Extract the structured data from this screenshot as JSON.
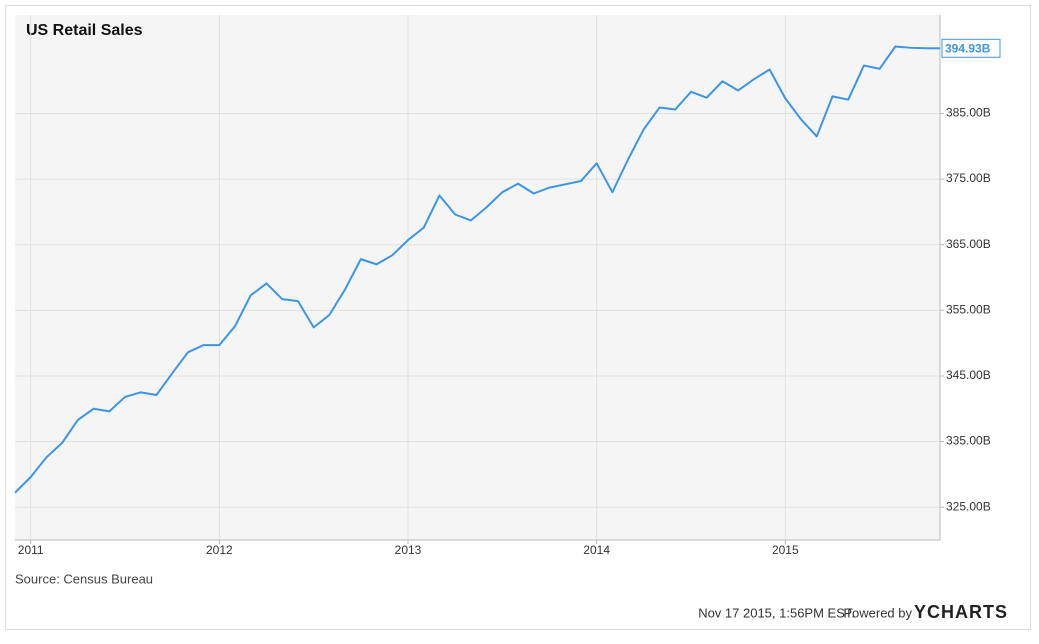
{
  "chart_data": {
    "type": "line",
    "title": "US Retail Sales",
    "source": "Source: Census Bureau",
    "timestamp": "Nov 17 2015, 1:56PM EST.",
    "powered_by": "Powered by",
    "brand": "YCHARTS",
    "xlim": [
      2010.9167,
      2015.82
    ],
    "xticks": [
      2011,
      2012,
      2013,
      2014,
      2015
    ],
    "ylim": [
      320,
      400
    ],
    "yticks": [
      {
        "value": 325,
        "label": "325.00B"
      },
      {
        "value": 335,
        "label": "335.00B"
      },
      {
        "value": 345,
        "label": "345.00B"
      },
      {
        "value": 355,
        "label": "355.00B"
      },
      {
        "value": 365,
        "label": "365.00B"
      },
      {
        "value": 375,
        "label": "375.00B"
      },
      {
        "value": 385,
        "label": "385.00B"
      }
    ],
    "grid": true,
    "series": [
      {
        "name": "US Retail Sales",
        "color": "#3d95e7",
        "x": [
          2010.9167,
          2011,
          2011.0833,
          2011.1667,
          2011.25,
          2011.3333,
          2011.4167,
          2011.5,
          2011.5833,
          2011.6667,
          2011.75,
          2011.8333,
          2011.9167,
          2012,
          2012.0833,
          2012.1667,
          2012.25,
          2012.3333,
          2012.4167,
          2012.5,
          2012.5833,
          2012.6667,
          2012.75,
          2012.8333,
          2012.9167,
          2013,
          2013.0833,
          2013.1667,
          2013.25,
          2013.3333,
          2013.4167,
          2013.5,
          2013.5833,
          2013.6667,
          2013.75,
          2013.8333,
          2013.9167,
          2014,
          2014.0833,
          2014.1667,
          2014.25,
          2014.3333,
          2014.4167,
          2014.5,
          2014.5833,
          2014.6667,
          2014.75,
          2014.8333,
          2014.9167,
          2015,
          2015.0833,
          2015.1667,
          2015.25,
          2015.3333,
          2015.4167,
          2015.5,
          2015.5833,
          2015.6667,
          2015.75
        ],
        "values": [
          327.2,
          329.6,
          332.6,
          334.8,
          338.3,
          340.0,
          339.6,
          341.8,
          342.5,
          342.1,
          345.4,
          348.6,
          349.7,
          349.7,
          352.6,
          357.3,
          359.1,
          356.7,
          356.4,
          352.4,
          354.3,
          358.2,
          362.8,
          362.0,
          363.4,
          365.7,
          367.6,
          372.5,
          369.6,
          368.7,
          370.7,
          373.0,
          374.3,
          372.8,
          373.7,
          374.2,
          374.7,
          377.4,
          373.0,
          378.0,
          382.6,
          385.9,
          385.6,
          388.3,
          387.4,
          389.9,
          388.5,
          390.2,
          391.7,
          387.3,
          384.1,
          381.5,
          387.6,
          387.1,
          392.3,
          391.8,
          395.2,
          395.0,
          394.93
        ],
        "value_labels": [
          null,
          null,
          null,
          null,
          null,
          null,
          null,
          null,
          null,
          null,
          null,
          null,
          null,
          null,
          null,
          null,
          null,
          null,
          null,
          null,
          null,
          null,
          null,
          null,
          null,
          null,
          null,
          null,
          null,
          null,
          null,
          null,
          null,
          null,
          null,
          null,
          null,
          null,
          null,
          null,
          null,
          null,
          null,
          null,
          null,
          null,
          null,
          null,
          null,
          null,
          null,
          null,
          null,
          null,
          null,
          null,
          null,
          null,
          "394.93B"
        ]
      }
    ]
  }
}
